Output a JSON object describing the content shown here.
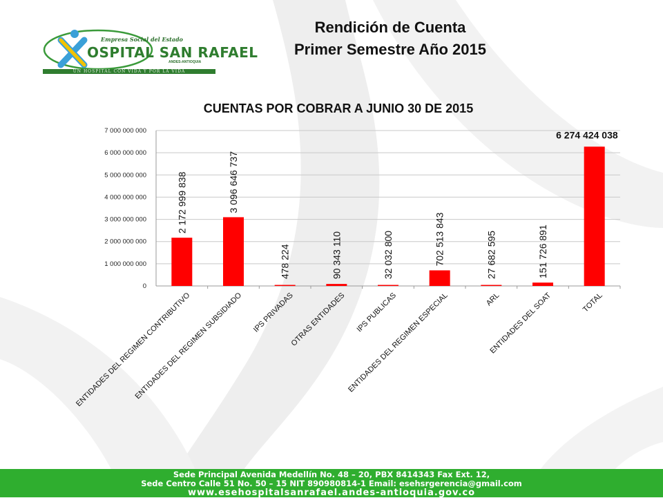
{
  "slide": {
    "title_line1": "Rendición de Cuenta",
    "title_line2": "Primer Semestre  Año  2015"
  },
  "logo": {
    "top_text": "Empresa Social del Estado",
    "name": "OSPITAL SAN RAFAEL",
    "subtitle": "ANDES-ANTIOQUIA",
    "tagline": "UN HOSPITAL CON VIDA Y POR LA VIDA"
  },
  "footer": {
    "line1": "Sede Principal Avenida Medellín No. 48 – 20, PBX 8414343 Fax Ext. 12,",
    "line2": "Sede Centro Calle 51 No. 50 – 15 NIT 890980814-1 Email: esehsrgerencia@gmail.com",
    "line3": "www.esehospitalsanrafael.andes-antioquia.gov.co"
  },
  "colors": {
    "bar": "#ff0000",
    "footer": "#2fae2f",
    "logo_green": "#2f7d2f"
  },
  "chart_data": {
    "type": "bar",
    "title": "CUENTAS POR COBRAR A JUNIO 30 DE 2015",
    "categories": [
      "ENTIDADES DEL REGIMEN CONTRIBUTIVO",
      "ENTIDADES DEL REGIMEN SUBSIDIADO",
      "IPS PRIVADAS",
      "OTRAS ENTIDADES",
      "IPS PUBLICAS",
      "ENTIDADES DEL REGIMEN ESPECIAL",
      "ARL",
      "ENTIDADES DEL SOAT",
      "TOTAL"
    ],
    "values": [
      2172999838,
      3096646737,
      478224,
      90343110,
      32032800,
      702513843,
      27682595,
      151726891,
      6274424038
    ],
    "data_labels": [
      "2 172 999 838",
      "3 096 646 737",
      "478 224",
      "90 343 110",
      "32 032 800",
      "702 513 843",
      "27 682 595",
      "151 726 891",
      "6 274 424 038"
    ],
    "y_ticks": [
      "0",
      "1 000 000 000",
      "2 000 000 000",
      "3 000 000 000",
      "4 000 000 000",
      "5 000 000 000",
      "6 000 000 000",
      "7 000 000 000"
    ],
    "ylim": [
      0,
      7000000000
    ],
    "grid": true,
    "legend": "none"
  }
}
